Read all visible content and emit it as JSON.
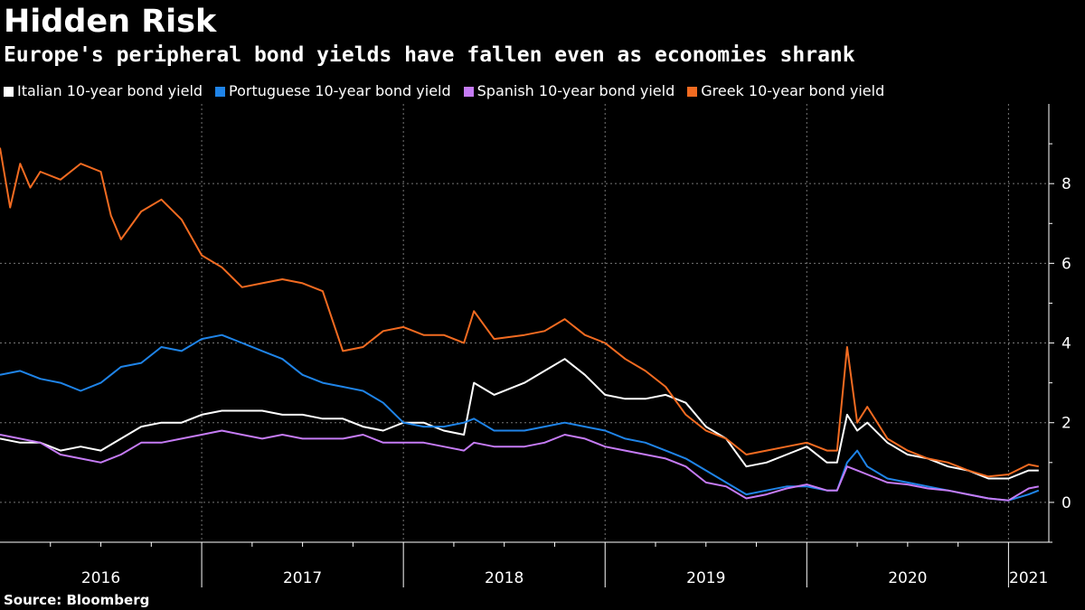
{
  "header": {
    "title": "Hidden Risk",
    "subtitle": "Europe's peripheral bond yields have fallen even as economies shrank"
  },
  "source": "Source: Bloomberg",
  "chart_data": {
    "type": "line",
    "title": "Hidden Risk",
    "subtitle": "Europe's peripheral bond yields have fallen even as economies shrank",
    "xlabel": "",
    "ylabel": "",
    "xlim": [
      2016.0,
      2021.2
    ],
    "ylim": [
      -1,
      10
    ],
    "yticks": [
      0,
      2,
      4,
      6,
      8
    ],
    "xticks": [
      "2016",
      "2017",
      "2018",
      "2019",
      "2020",
      "2021"
    ],
    "grid": true,
    "legend_position": "top-left",
    "series": [
      {
        "name": "Italian 10-year bond yield",
        "color": "#ffffff",
        "x": [
          2016.0,
          2016.1,
          2016.2,
          2016.3,
          2016.4,
          2016.5,
          2016.6,
          2016.7,
          2016.8,
          2016.9,
          2017.0,
          2017.1,
          2017.2,
          2017.3,
          2017.4,
          2017.5,
          2017.6,
          2017.7,
          2017.8,
          2017.9,
          2018.0,
          2018.1,
          2018.2,
          2018.3,
          2018.35,
          2018.45,
          2018.6,
          2018.7,
          2018.8,
          2018.9,
          2019.0,
          2019.1,
          2019.2,
          2019.3,
          2019.4,
          2019.5,
          2019.6,
          2019.7,
          2019.8,
          2019.9,
          2020.0,
          2020.1,
          2020.15,
          2020.2,
          2020.25,
          2020.3,
          2020.4,
          2020.5,
          2020.6,
          2020.7,
          2020.8,
          2020.9,
          2021.0,
          2021.1,
          2021.15
        ],
        "values": [
          1.6,
          1.5,
          1.5,
          1.3,
          1.4,
          1.3,
          1.6,
          1.9,
          2.0,
          2.0,
          2.2,
          2.3,
          2.3,
          2.3,
          2.2,
          2.2,
          2.1,
          2.1,
          1.9,
          1.8,
          2.0,
          2.0,
          1.8,
          1.7,
          3.0,
          2.7,
          3.0,
          3.3,
          3.6,
          3.2,
          2.7,
          2.6,
          2.6,
          2.7,
          2.5,
          1.9,
          1.6,
          0.9,
          1.0,
          1.2,
          1.4,
          1.0,
          1.0,
          2.2,
          1.8,
          2.0,
          1.5,
          1.2,
          1.1,
          0.9,
          0.8,
          0.6,
          0.6,
          0.8,
          0.8
        ]
      },
      {
        "name": "Portuguese 10-year bond yield",
        "color": "#1f84e8",
        "x": [
          2016.0,
          2016.1,
          2016.2,
          2016.3,
          2016.4,
          2016.5,
          2016.6,
          2016.7,
          2016.8,
          2016.9,
          2017.0,
          2017.1,
          2017.2,
          2017.3,
          2017.4,
          2017.5,
          2017.6,
          2017.7,
          2017.8,
          2017.9,
          2018.0,
          2018.1,
          2018.2,
          2018.3,
          2018.35,
          2018.45,
          2018.6,
          2018.7,
          2018.8,
          2018.9,
          2019.0,
          2019.1,
          2019.2,
          2019.3,
          2019.4,
          2019.5,
          2019.6,
          2019.7,
          2019.8,
          2019.9,
          2020.0,
          2020.1,
          2020.15,
          2020.2,
          2020.25,
          2020.3,
          2020.4,
          2020.5,
          2020.6,
          2020.7,
          2020.8,
          2020.9,
          2021.0,
          2021.1,
          2021.15
        ],
        "values": [
          3.2,
          3.3,
          3.1,
          3.0,
          2.8,
          3.0,
          3.4,
          3.5,
          3.9,
          3.8,
          4.1,
          4.2,
          4.0,
          3.8,
          3.6,
          3.2,
          3.0,
          2.9,
          2.8,
          2.5,
          2.0,
          1.9,
          1.9,
          2.0,
          2.1,
          1.8,
          1.8,
          1.9,
          2.0,
          1.9,
          1.8,
          1.6,
          1.5,
          1.3,
          1.1,
          0.8,
          0.5,
          0.2,
          0.3,
          0.4,
          0.4,
          0.3,
          0.3,
          1.0,
          1.3,
          0.9,
          0.6,
          0.5,
          0.4,
          0.3,
          0.2,
          0.1,
          0.05,
          0.2,
          0.3
        ]
      },
      {
        "name": "Spanish 10-year bond yield",
        "color": "#c57bf5",
        "x": [
          2016.0,
          2016.1,
          2016.2,
          2016.3,
          2016.4,
          2016.5,
          2016.6,
          2016.7,
          2016.8,
          2016.9,
          2017.0,
          2017.1,
          2017.2,
          2017.3,
          2017.4,
          2017.5,
          2017.6,
          2017.7,
          2017.8,
          2017.9,
          2018.0,
          2018.1,
          2018.2,
          2018.3,
          2018.35,
          2018.45,
          2018.6,
          2018.7,
          2018.8,
          2018.9,
          2019.0,
          2019.1,
          2019.2,
          2019.3,
          2019.4,
          2019.5,
          2019.6,
          2019.7,
          2019.8,
          2019.9,
          2020.0,
          2020.1,
          2020.15,
          2020.2,
          2020.25,
          2020.3,
          2020.4,
          2020.5,
          2020.6,
          2020.7,
          2020.8,
          2020.9,
          2021.0,
          2021.1,
          2021.15
        ],
        "values": [
          1.7,
          1.6,
          1.5,
          1.2,
          1.1,
          1.0,
          1.2,
          1.5,
          1.5,
          1.6,
          1.7,
          1.8,
          1.7,
          1.6,
          1.7,
          1.6,
          1.6,
          1.6,
          1.7,
          1.5,
          1.5,
          1.5,
          1.4,
          1.3,
          1.5,
          1.4,
          1.4,
          1.5,
          1.7,
          1.6,
          1.4,
          1.3,
          1.2,
          1.1,
          0.9,
          0.5,
          0.4,
          0.1,
          0.2,
          0.35,
          0.45,
          0.3,
          0.3,
          0.9,
          0.8,
          0.7,
          0.5,
          0.45,
          0.35,
          0.3,
          0.2,
          0.1,
          0.05,
          0.35,
          0.4
        ]
      },
      {
        "name": "Greek 10-year bond yield",
        "color": "#f26b21",
        "x": [
          2016.0,
          2016.05,
          2016.1,
          2016.15,
          2016.2,
          2016.3,
          2016.4,
          2016.5,
          2016.55,
          2016.6,
          2016.7,
          2016.8,
          2016.9,
          2017.0,
          2017.1,
          2017.2,
          2017.3,
          2017.4,
          2017.5,
          2017.6,
          2017.7,
          2017.8,
          2017.9,
          2018.0,
          2018.1,
          2018.2,
          2018.3,
          2018.35,
          2018.45,
          2018.6,
          2018.7,
          2018.8,
          2018.9,
          2019.0,
          2019.1,
          2019.2,
          2019.3,
          2019.4,
          2019.5,
          2019.6,
          2019.7,
          2019.8,
          2019.9,
          2020.0,
          2020.1,
          2020.15,
          2020.2,
          2020.25,
          2020.3,
          2020.4,
          2020.5,
          2020.6,
          2020.7,
          2020.8,
          2020.9,
          2021.0,
          2021.1,
          2021.15
        ],
        "values": [
          8.9,
          7.4,
          8.5,
          7.9,
          8.3,
          8.1,
          8.5,
          8.3,
          7.2,
          6.6,
          7.3,
          7.6,
          7.1,
          6.2,
          5.9,
          5.4,
          5.5,
          5.6,
          5.5,
          5.3,
          3.8,
          3.9,
          4.3,
          4.4,
          4.2,
          4.2,
          4.0,
          4.8,
          4.1,
          4.2,
          4.3,
          4.6,
          4.2,
          4.0,
          3.6,
          3.3,
          2.9,
          2.2,
          1.8,
          1.6,
          1.2,
          1.3,
          1.4,
          1.5,
          1.3,
          1.3,
          3.9,
          2.0,
          2.4,
          1.6,
          1.3,
          1.1,
          1.0,
          0.8,
          0.65,
          0.7,
          0.95,
          0.9
        ]
      }
    ]
  }
}
